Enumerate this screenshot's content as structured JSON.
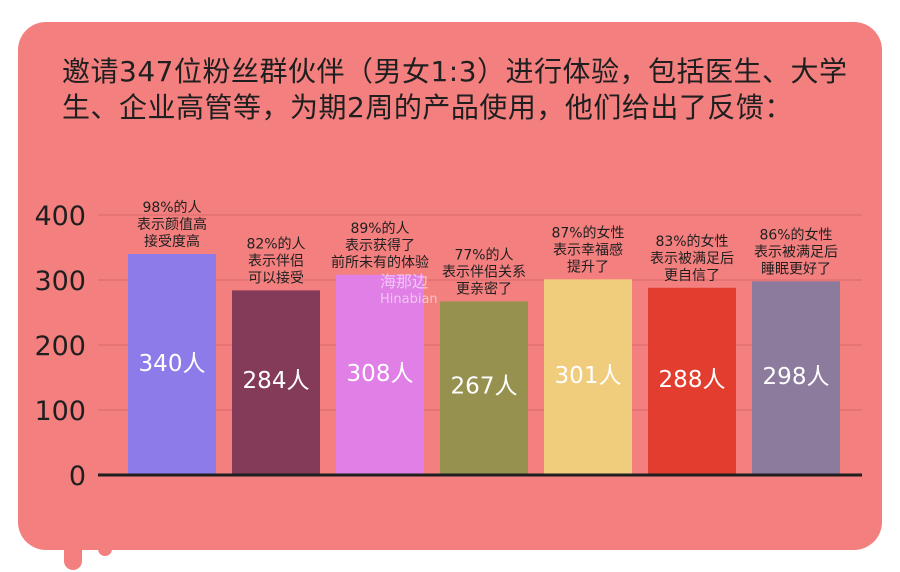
{
  "page": {
    "title": "邀请347位粉丝群伙伴（男女1:3）进行体验，包括医生、大学生、企业高管等，为期2周的产品使用，他们给出了反馈：",
    "watermark": "海那边",
    "watermark_sub": "Hinabian"
  },
  "colors": {
    "background": "#f47f7f",
    "axis": "#1f1f1f",
    "gridline": "#d96a6a",
    "bars": [
      "#8c7be8",
      "#843a59",
      "#e07fe6",
      "#979150",
      "#f0cc7d",
      "#e23d2e",
      "#8c7b9c"
    ]
  },
  "chart_data": {
    "type": "bar",
    "title": "",
    "xlabel": "",
    "ylabel": "",
    "ylim": [
      0,
      400
    ],
    "yticks": [
      0,
      100,
      200,
      300,
      400
    ],
    "values": [
      340,
      284,
      308,
      267,
      301,
      288,
      298
    ],
    "value_labels": [
      "340人",
      "284人",
      "308人",
      "267人",
      "301人",
      "288人",
      "298人"
    ],
    "annotations": [
      [
        "98%的人",
        "表示颜值高",
        "接受度高"
      ],
      [
        "82%的人",
        "表示伴侣",
        "可以接受"
      ],
      [
        "89%的人",
        "表示获得了",
        "前所未有的体验"
      ],
      [
        "77%的人",
        "表示伴侣关系",
        "更亲密了"
      ],
      [
        "87%的女性",
        "表示幸福感",
        "提升了"
      ],
      [
        "83%的女性",
        "表示被满足后",
        "更自信了"
      ],
      [
        "86%的女性",
        "表示被满足后",
        "睡眠更好了"
      ]
    ]
  }
}
